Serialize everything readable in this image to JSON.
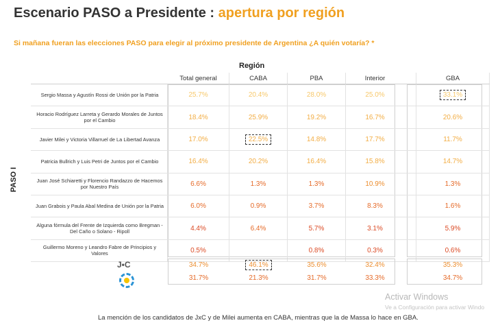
{
  "title": {
    "main": "Escenario PASO a Presidente : ",
    "accent": "apertura por región"
  },
  "subtitle": "Si mañana fueran las elecciones PASO para elegir al próximo presidente de Argentina ¿A quién votaría? *",
  "region_label": "Región",
  "side_label": "PASO I",
  "columns": [
    "Total general",
    "CABA",
    "PBA",
    "Interior",
    "GBA"
  ],
  "rows": [
    {
      "name": "Sergio Massa y Agustín Rossi de Unión por la Patria",
      "values": [
        "25.7%",
        "20.4%",
        "28.0%",
        "25.0%",
        "33.1%"
      ],
      "levels": [
        1,
        1,
        1,
        1,
        1
      ],
      "highlight": [
        false,
        false,
        false,
        false,
        true
      ]
    },
    {
      "name": "Horacio Rodríguez Larreta y Gerardo Morales de Juntos por el Cambio",
      "values": [
        "18.4%",
        "25.9%",
        "19.2%",
        "16.7%",
        "20.6%"
      ],
      "levels": [
        2,
        2,
        2,
        2,
        2
      ],
      "highlight": [
        false,
        false,
        false,
        false,
        false
      ]
    },
    {
      "name": "Javier Milei y Victoria Villarruel de La Libertad Avanza",
      "values": [
        "17.0%",
        "22.5%",
        "14.8%",
        "17.7%",
        "11.7%"
      ],
      "levels": [
        2,
        2,
        2,
        2,
        2
      ],
      "highlight": [
        false,
        true,
        false,
        false,
        false
      ]
    },
    {
      "name": "Patricia Bullrich y Luis Petri de Juntos por el Cambio",
      "values": [
        "16.4%",
        "20.2%",
        "16.4%",
        "15.8%",
        "14.7%"
      ],
      "levels": [
        2,
        2,
        2,
        2,
        2
      ],
      "highlight": [
        false,
        false,
        false,
        false,
        false
      ]
    },
    {
      "name": "Juan José Schiaretti y Florencio Randazzo de Hacemos por Nuestro País",
      "values": [
        "6.6%",
        "1.3%",
        "1.3%",
        "10.9%",
        "1.3%"
      ],
      "levels": [
        4,
        4,
        4,
        3,
        4
      ],
      "highlight": [
        false,
        false,
        false,
        false,
        false
      ]
    },
    {
      "name": "Juan Grabois y Paula Abal Medina de Unión por la Patria",
      "values": [
        "6.0%",
        "0.9%",
        "3.7%",
        "8.3%",
        "1.6%"
      ],
      "levels": [
        4,
        4,
        4,
        4,
        4
      ],
      "highlight": [
        false,
        false,
        false,
        false,
        false
      ]
    },
    {
      "name": "Alguna fórmula del Frente de Izquierda como Bregman - Del Caño o Solano - Ripoll",
      "values": [
        "4.4%",
        "6.4%",
        "5.7%",
        "3.1%",
        "5.9%"
      ],
      "levels": [
        5,
        4,
        5,
        5,
        5
      ],
      "highlight": [
        false,
        false,
        false,
        false,
        false
      ]
    },
    {
      "name": "Guillermo Moreno y Leandro Fabre de Principios y Valores",
      "values": [
        "0.5%",
        "",
        "0.8%",
        "0.3%",
        "0.6%"
      ],
      "levels": [
        5,
        5,
        5,
        5,
        5
      ],
      "highlight": [
        false,
        false,
        false,
        false,
        false
      ]
    }
  ],
  "logo_text": "J•C",
  "totals": [
    {
      "values": [
        "34.7%",
        "46.1%",
        "35.6%",
        "32.4%",
        "35.3%"
      ],
      "highlight": [
        false,
        true,
        false,
        false,
        false
      ]
    },
    {
      "values": [
        "31.7%",
        "21.3%",
        "31.7%",
        "33.3%",
        "34.7%"
      ],
      "highlight": [
        false,
        false,
        false,
        false,
        false
      ]
    }
  ],
  "footer": "La mención de los candidatos de JxC y de Milei aumenta en CABA, mientras que la de Massa lo hace en GBA.",
  "watermark": {
    "line1": "Activar Windows",
    "line2": "Ve a Configuración para activar Windo"
  }
}
